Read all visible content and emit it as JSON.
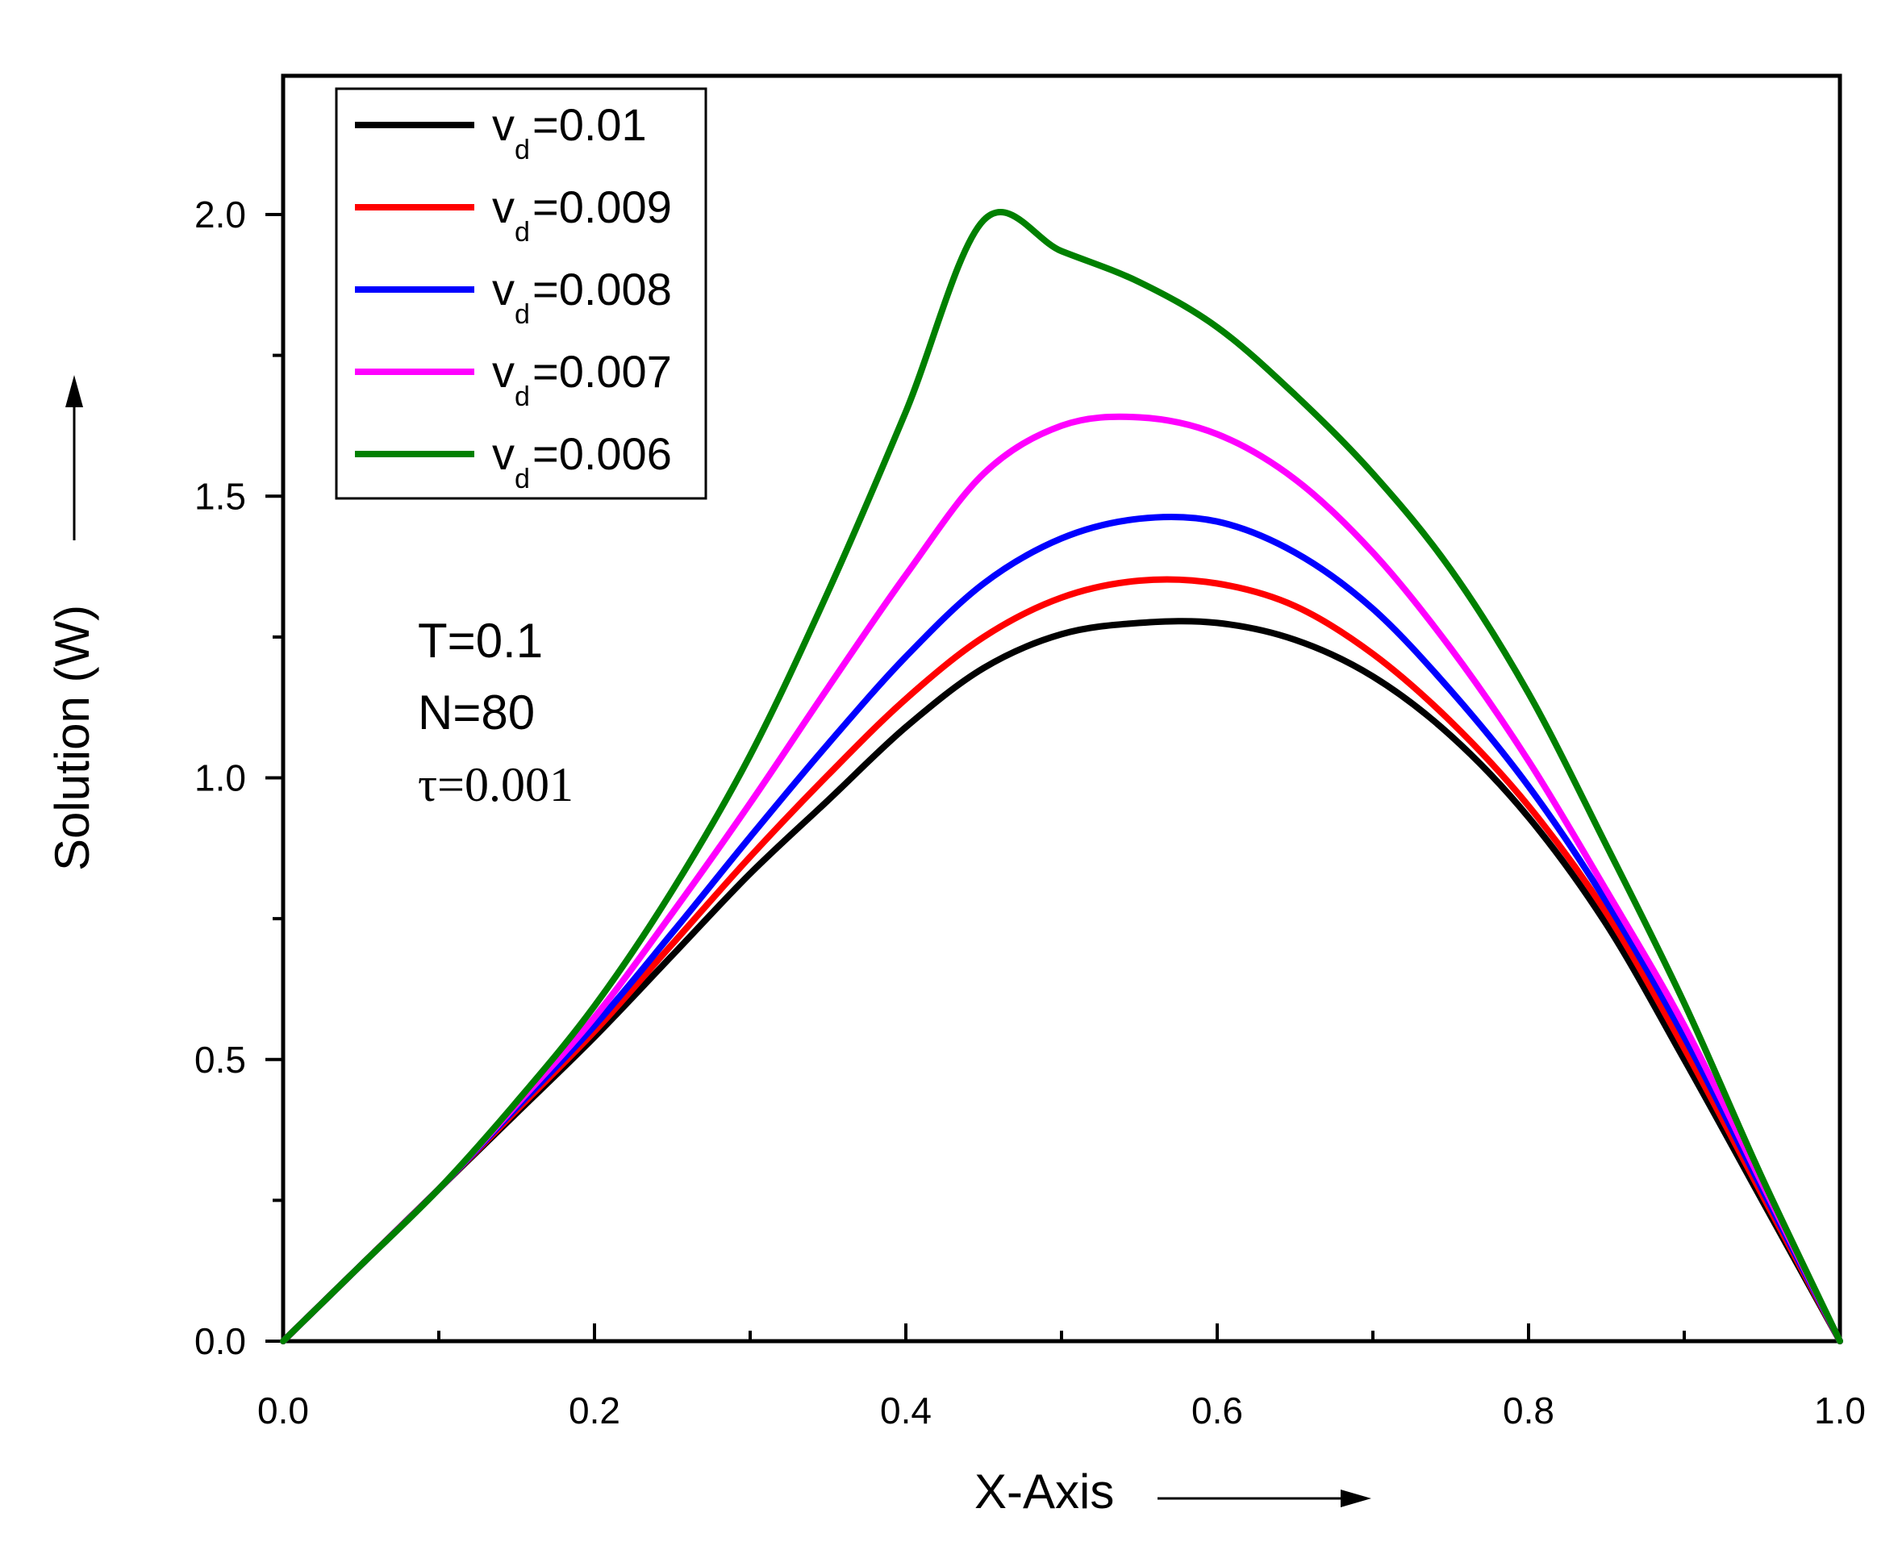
{
  "chart_data": {
    "type": "line",
    "title": "",
    "xlabel": "X-Axis",
    "ylabel": "Solution (W)",
    "xlim": [
      0,
      1.0
    ],
    "ylim": [
      0,
      2.25
    ],
    "xticks": [
      0.0,
      0.2,
      0.4,
      0.6,
      0.8,
      1.0
    ],
    "yticks": [
      0.0,
      0.5,
      1.0,
      1.5,
      2.0
    ],
    "xtick_labels": [
      "0.0",
      "0.2",
      "0.4",
      "0.6",
      "0.8",
      "1.0"
    ],
    "ytick_labels": [
      "0.0",
      "0.5",
      "1.0",
      "1.5",
      "2.0"
    ],
    "x": [
      0.0,
      0.05,
      0.1,
      0.15,
      0.2,
      0.25,
      0.3,
      0.35,
      0.4,
      0.45,
      0.5,
      0.55,
      0.6,
      0.65,
      0.7,
      0.75,
      0.8,
      0.85,
      0.9,
      0.95,
      1.0
    ],
    "series": [
      {
        "name": "v_d=0.01",
        "label_main": "v",
        "label_sub": "d",
        "label_value": "=0.01",
        "color": "#000000",
        "values": [
          0.0,
          0.135,
          0.27,
          0.405,
          0.54,
          0.685,
          0.83,
          0.96,
          1.09,
          1.195,
          1.255,
          1.275,
          1.275,
          1.245,
          1.18,
          1.075,
          0.93,
          0.74,
          0.5,
          0.25,
          0.0
        ]
      },
      {
        "name": "v_d=0.009",
        "label_main": "v",
        "label_sub": "d",
        "label_value": "=0.009",
        "color": "#ff0000",
        "values": [
          0.0,
          0.135,
          0.27,
          0.41,
          0.55,
          0.705,
          0.86,
          1.005,
          1.14,
          1.25,
          1.32,
          1.35,
          1.345,
          1.305,
          1.22,
          1.1,
          0.95,
          0.76,
          0.52,
          0.26,
          0.0
        ]
      },
      {
        "name": "v_d=0.008",
        "label_main": "v",
        "label_sub": "d",
        "label_value": "=0.008",
        "color": "#0000ff",
        "values": [
          0.0,
          0.135,
          0.27,
          0.415,
          0.56,
          0.725,
          0.895,
          1.06,
          1.215,
          1.345,
          1.425,
          1.46,
          1.455,
          1.4,
          1.3,
          1.155,
          0.985,
          0.78,
          0.54,
          0.27,
          0.0
        ]
      },
      {
        "name": "v_d=0.007",
        "label_main": "v",
        "label_sub": "d",
        "label_value": "=0.007",
        "color": "#ff00ff",
        "values": [
          0.0,
          0.135,
          0.27,
          0.42,
          0.575,
          0.76,
          0.955,
          1.16,
          1.36,
          1.54,
          1.625,
          1.64,
          1.61,
          1.53,
          1.4,
          1.23,
          1.03,
          0.8,
          0.56,
          0.28,
          0.0
        ]
      },
      {
        "name": "v_d=0.006",
        "label_main": "v",
        "label_sub": "d",
        "label_value": "=0.006",
        "color": "#008000",
        "values": [
          0.0,
          0.135,
          0.27,
          0.425,
          0.595,
          0.8,
          1.04,
          1.33,
          1.65,
          1.99,
          1.935,
          1.88,
          1.8,
          1.68,
          1.54,
          1.37,
          1.15,
          0.88,
          0.6,
          0.29,
          0.0
        ]
      }
    ],
    "legend_position": "top-left",
    "annotations": [
      "T=0.1",
      "N=80",
      "τ=0.001"
    ],
    "grid": false
  }
}
